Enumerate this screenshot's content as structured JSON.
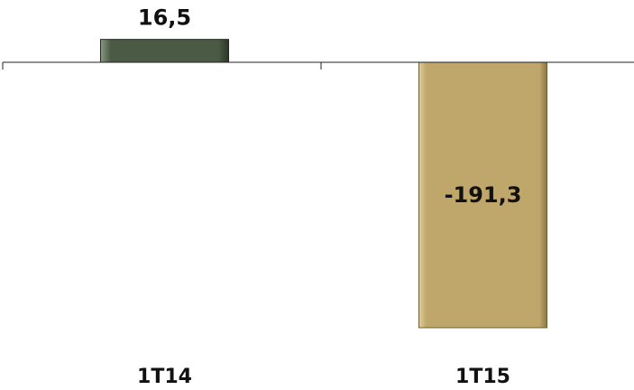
{
  "chart_data": {
    "type": "bar",
    "categories": [
      "1T14",
      "1T15"
    ],
    "values": [
      16.5,
      -191.3
    ],
    "value_labels": [
      "16,5",
      "-191,3"
    ],
    "colors": [
      "#4a5a44",
      "#bfa66a"
    ],
    "title": "",
    "xlabel": "",
    "ylabel": "",
    "ylim": [
      -200,
      25
    ],
    "grid": false,
    "legend": "none"
  }
}
